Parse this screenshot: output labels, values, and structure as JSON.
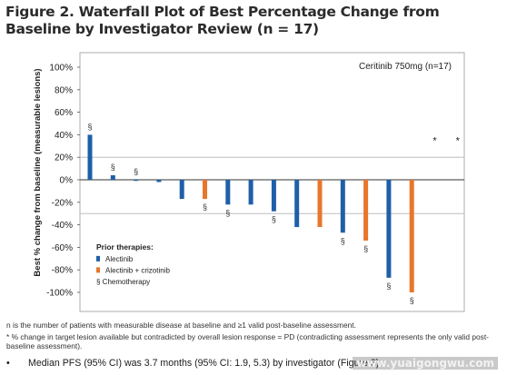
{
  "figure": {
    "title": "Figure 2. Waterfall Plot of Best Percentage Change from Baseline by Investigator Review (n = 17)"
  },
  "chart_data": {
    "type": "bar",
    "title": "Figure 2. Waterfall Plot of Best Percentage Change from Baseline by Investigator Review (n = 17)",
    "xlabel": "",
    "ylabel": "Best % change from baseline (measurable lesions)",
    "ylim": [
      -110,
      110
    ],
    "yticks": [
      100,
      80,
      60,
      40,
      20,
      0,
      -20,
      -40,
      -60,
      -80,
      -100
    ],
    "ytick_labels": [
      "100%",
      "80%",
      "60%",
      "40%",
      "20%",
      "0%",
      "-20%",
      "-40%",
      "-60%",
      "-80%",
      "-100%"
    ],
    "reference_lines": [
      20,
      -30
    ],
    "annotation": "Ceritinib 750mg (n=17)",
    "legend_title": "Prior therapies:",
    "legend_position": "bottom-left",
    "colors": {
      "Alectinib": "#1f5fa8",
      "Alectinib + crizotinib": "#e8762b"
    },
    "legend": [
      {
        "label": "Alectinib",
        "color": "#1f5fa8"
      },
      {
        "label": "Alectinib + crizotinib",
        "color": "#e8762b"
      },
      {
        "label": "§ Chemotherapy",
        "symbol": "§"
      }
    ],
    "series": [
      {
        "name": "Alectinib",
        "color": "#1f5fa8"
      },
      {
        "name": "Alectinib + crizotinib",
        "color": "#e8762b"
      }
    ],
    "bars": [
      {
        "value": 40,
        "therapy": "Alectinib",
        "chemo": true
      },
      {
        "value": 4,
        "therapy": "Alectinib",
        "chemo": true
      },
      {
        "value": 0,
        "therapy": "Alectinib",
        "chemo": true
      },
      {
        "value": -2,
        "therapy": "Alectinib",
        "chemo": false
      },
      {
        "value": -17,
        "therapy": "Alectinib",
        "chemo": false
      },
      {
        "value": -17,
        "therapy": "Alectinib + crizotinib",
        "chemo": true
      },
      {
        "value": -22,
        "therapy": "Alectinib",
        "chemo": true
      },
      {
        "value": -22,
        "therapy": "Alectinib",
        "chemo": false
      },
      {
        "value": -28,
        "therapy": "Alectinib",
        "chemo": true
      },
      {
        "value": -42,
        "therapy": "Alectinib",
        "chemo": false
      },
      {
        "value": -42,
        "therapy": "Alectinib + crizotinib",
        "chemo": false
      },
      {
        "value": -47,
        "therapy": "Alectinib",
        "chemo": true
      },
      {
        "value": -54,
        "therapy": "Alectinib + crizotinib",
        "chemo": true
      },
      {
        "value": -87,
        "therapy": "Alectinib",
        "chemo": true
      },
      {
        "value": -100,
        "therapy": "Alectinib + crizotinib",
        "chemo": true
      },
      {
        "value": null,
        "therapy": "",
        "chemo": false,
        "marker": "*"
      },
      {
        "value": null,
        "therapy": "",
        "chemo": false,
        "marker": "*"
      }
    ],
    "grid": false
  },
  "footnotes": {
    "n_note": "n is the number of patients with measurable disease at baseline and ≥1 valid post-baseline assessment.",
    "star_note": "* % change in target lesion available but contradicted by overall lesion response = PD (contradicting assessment represents the only valid post-baseline assessment)."
  },
  "bullet": {
    "marker": "•",
    "text": "Median PFS (95% CI) was 3.7 months (95% CI: 1.9, 5.3) by investigator (Figure 3)."
  },
  "watermark": "www.yuaigongwu.com"
}
